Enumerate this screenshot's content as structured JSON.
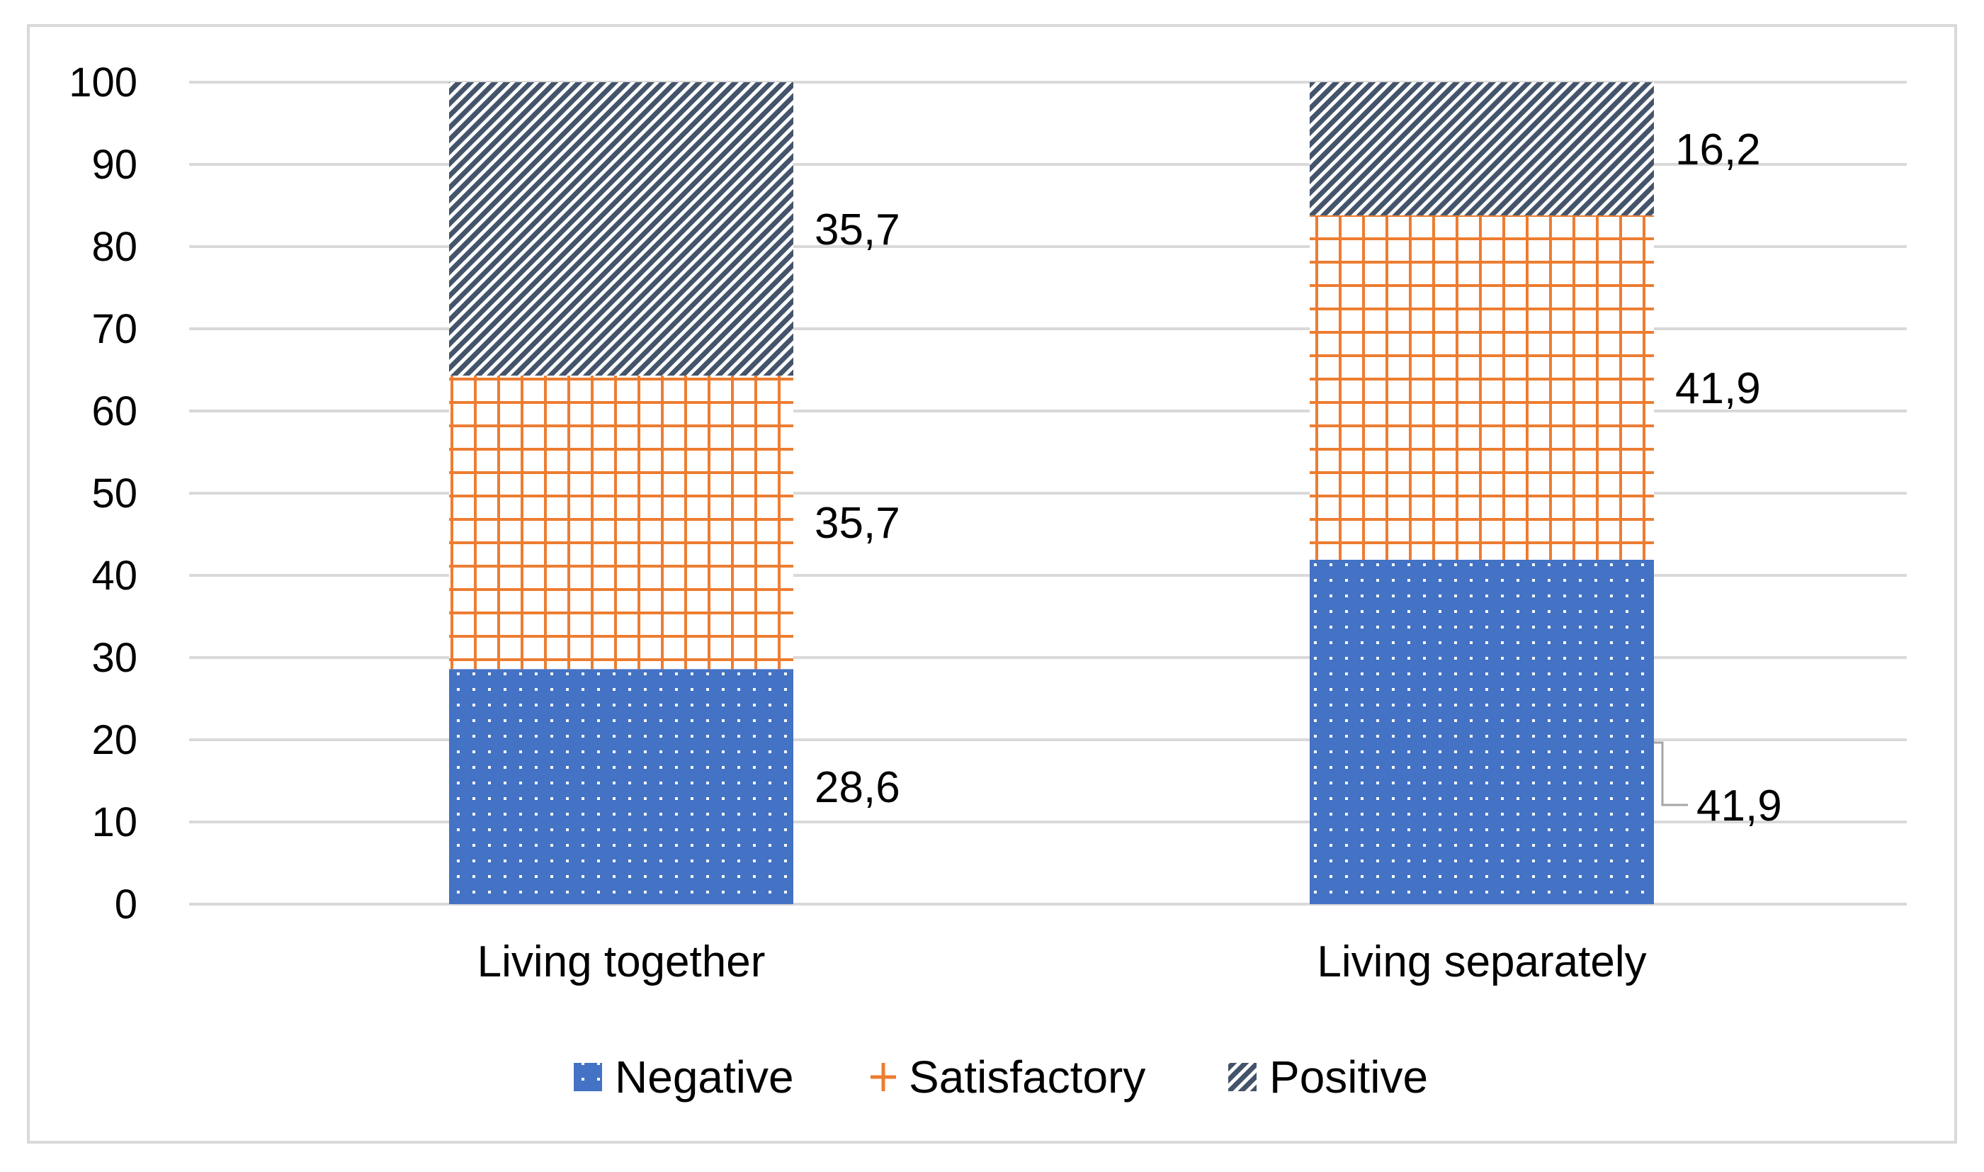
{
  "chart_data": {
    "type": "bar",
    "stacked": true,
    "categories": [
      "Living together",
      "Living separately"
    ],
    "series": [
      {
        "name": "Negative",
        "values": [
          28.6,
          41.9
        ],
        "labels": [
          "28,6",
          "41,9"
        ],
        "color": "#4472c4",
        "pattern": "dots"
      },
      {
        "name": "Satisfactory",
        "values": [
          35.7,
          41.9
        ],
        "labels": [
          "35,7",
          "41,9"
        ],
        "color": "#ed7d31",
        "pattern": "grid"
      },
      {
        "name": "Positive",
        "values": [
          35.7,
          16.2
        ],
        "labels": [
          "35,7",
          "16,2"
        ],
        "color": "#44546a",
        "pattern": "diagonal"
      }
    ],
    "yticks": [
      "0",
      "10",
      "20",
      "30",
      "40",
      "50",
      "60",
      "70",
      "80",
      "90",
      "100"
    ],
    "ylim": [
      0,
      100
    ],
    "grid": true,
    "legend": "bottom",
    "title": "",
    "xlabel": "",
    "ylabel": ""
  }
}
